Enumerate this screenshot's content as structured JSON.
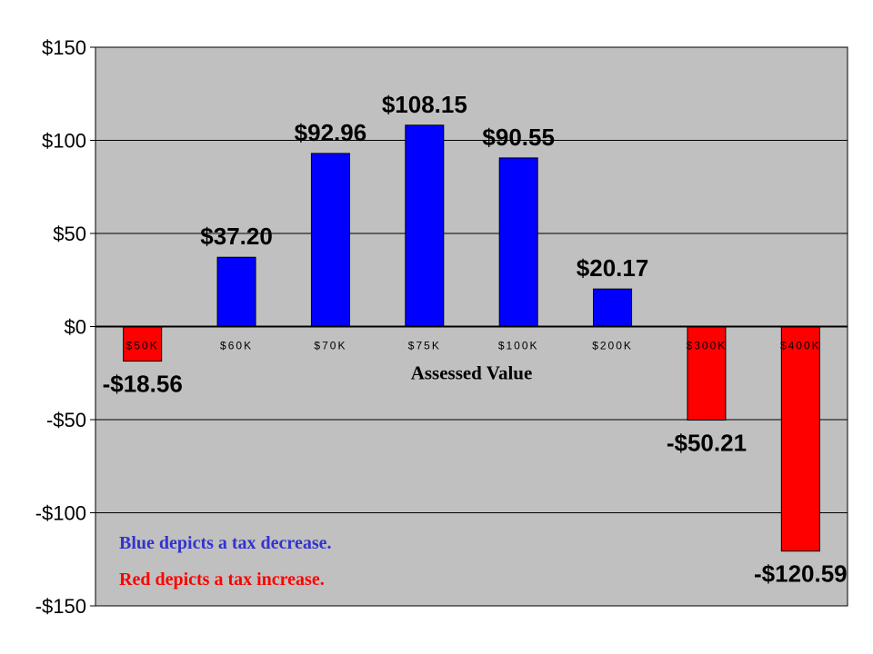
{
  "chart_data": {
    "type": "bar",
    "title": "",
    "xlabel": "Assessed Value",
    "ylabel": "",
    "categories": [
      "$50K",
      "$60K",
      "$70K",
      "$75K",
      "$100K",
      "$200K",
      "$300K",
      "$400K"
    ],
    "values": [
      -18.56,
      37.2,
      92.96,
      108.15,
      90.55,
      20.17,
      -50.21,
      -120.59
    ],
    "data_labels": [
      "-$18.56",
      "$37.20",
      "$92.96",
      "$108.15",
      "$90.55",
      "$20.17",
      "-$50.21",
      "-$120.59"
    ],
    "ylim": [
      -150,
      150
    ],
    "yticks": [
      150,
      100,
      50,
      0,
      -50,
      -100,
      -150
    ],
    "ytick_labels": [
      "$150",
      "$100",
      "$50",
      "$0",
      "-$50",
      "-$100",
      "-$150"
    ],
    "grid": true,
    "colors": {
      "positive": "#0000ff",
      "negative": "#ff0000",
      "plot_background": "#c0c0c0"
    },
    "annotations": [
      {
        "text": "Blue depicts a tax decrease.",
        "color": "#3333cc"
      },
      {
        "text": "Red depicts a tax increase.",
        "color": "#ff0000"
      }
    ]
  }
}
